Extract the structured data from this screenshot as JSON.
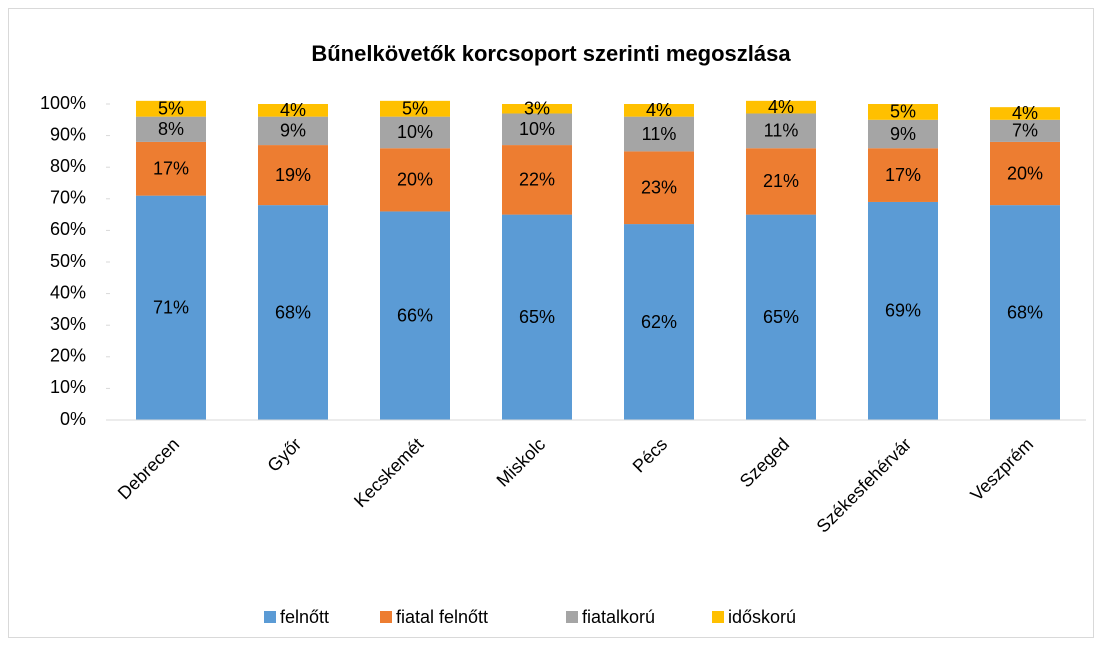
{
  "chart_data": {
    "type": "stacked_bar",
    "title": "Bűnelkövetők korcsoport szerinti megoszlása",
    "categories": [
      "Debrecen",
      "Győr",
      "Kecskemét",
      "Miskolc",
      "Pécs",
      "Szeged",
      "Székesfehérvár",
      "Veszprém"
    ],
    "series": [
      {
        "name": "felnőtt",
        "color": "#5b9bd5",
        "values": [
          71,
          68,
          66,
          65,
          62,
          65,
          69,
          68
        ],
        "value_labels": [
          "71%",
          "68%",
          "66%",
          "65%",
          "62%",
          "65%",
          "69%",
          "68%"
        ]
      },
      {
        "name": "fiatal felnőtt",
        "color": "#ed7d31",
        "values": [
          17,
          19,
          20,
          22,
          23,
          21,
          17,
          20
        ],
        "value_labels": [
          "17%",
          "19%",
          "20%",
          "22%",
          "23%",
          "21%",
          "17%",
          "20%"
        ]
      },
      {
        "name": "fiatalkorú",
        "color": "#a5a5a5",
        "values": [
          8,
          9,
          10,
          10,
          11,
          11,
          9,
          7
        ],
        "value_labels": [
          "8%",
          "9%",
          "10%",
          "10%",
          "11%",
          "11%",
          "9%",
          "7%"
        ]
      },
      {
        "name": "időskorú",
        "color": "#ffc000",
        "values": [
          5,
          4,
          5,
          3,
          4,
          4,
          5,
          4
        ],
        "value_labels": [
          "5%",
          "4%",
          "5%",
          "3%",
          "4%",
          "4%",
          "5%",
          "4%"
        ]
      }
    ],
    "ylim": [
      0,
      100
    ],
    "yticks": [
      {
        "value": 0,
        "label": "0%"
      },
      {
        "value": 10,
        "label": "10%"
      },
      {
        "value": 20,
        "label": "20%"
      },
      {
        "value": 30,
        "label": "30%"
      },
      {
        "value": 40,
        "label": "40%"
      },
      {
        "value": 50,
        "label": "50%"
      },
      {
        "value": 60,
        "label": "60%"
      },
      {
        "value": 70,
        "label": "70%"
      },
      {
        "value": 80,
        "label": "80%"
      },
      {
        "value": 90,
        "label": "90%"
      },
      {
        "value": 100,
        "label": "100%"
      }
    ],
    "legend": "bottom"
  }
}
